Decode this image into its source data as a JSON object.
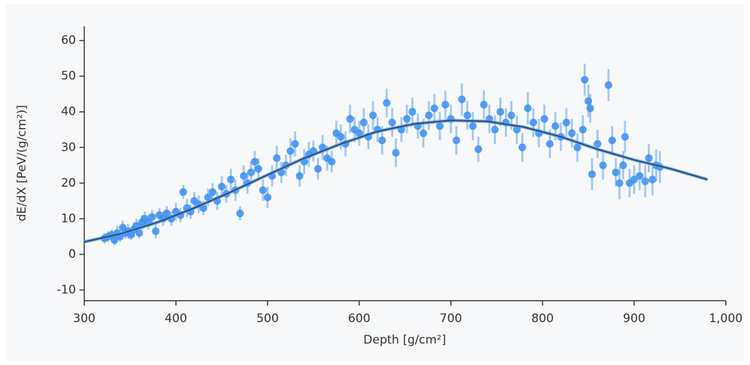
{
  "chart_data": {
    "type": "scatter",
    "xlabel": "Depth [g/cm²]",
    "ylabel": "dE/dX [PeV/(g/cm²)]",
    "xlim": [
      300,
      1000
    ],
    "ylim": [
      -13,
      64
    ],
    "xticks": [
      300,
      400,
      500,
      600,
      700,
      800,
      900,
      {
        "value": 1000,
        "label": "1,000"
      }
    ],
    "yticks": [
      -10,
      0,
      10,
      20,
      30,
      40,
      50,
      60
    ],
    "series": [
      {
        "type": "scatter",
        "color": "#3b8ff0",
        "x": [
          322,
          326,
          330,
          333,
          336,
          339,
          342,
          345,
          348,
          351,
          354,
          357,
          360,
          363,
          366,
          370,
          374,
          378,
          382,
          386,
          390,
          395,
          400,
          405,
          408,
          412,
          416,
          420,
          425,
          430,
          435,
          440,
          445,
          450,
          455,
          460,
          465,
          470,
          474,
          478,
          482,
          486,
          490,
          495,
          500,
          505,
          510,
          515,
          520,
          525,
          530,
          535,
          540,
          545,
          550,
          555,
          560,
          565,
          570,
          575,
          580,
          585,
          590,
          595,
          600,
          605,
          610,
          615,
          620,
          625,
          630,
          636,
          640,
          646,
          652,
          658,
          664,
          670,
          676,
          682,
          688,
          694,
          700,
          706,
          712,
          718,
          724,
          730,
          736,
          742,
          748,
          754,
          760,
          766,
          772,
          778,
          784,
          790,
          796,
          802,
          808,
          814,
          820,
          826,
          832,
          838,
          844,
          846,
          850,
          852,
          854,
          860,
          866,
          872,
          876,
          880,
          884,
          888,
          890,
          895,
          900,
          906,
          912,
          916,
          920,
          924,
          928
        ],
        "values": [
          4.5,
          5,
          5.5,
          4,
          6,
          5,
          7.5,
          6,
          6.5,
          5.5,
          7,
          8,
          6,
          9,
          10,
          9,
          10.5,
          6.5,
          11,
          10,
          11.5,
          10,
          12,
          11,
          17.5,
          13,
          12,
          15,
          14,
          13,
          16,
          17.5,
          15,
          19,
          17,
          21,
          18,
          11.5,
          22,
          20,
          23,
          26,
          24,
          18,
          16,
          22,
          27,
          23,
          25,
          29,
          31,
          22,
          26,
          28,
          29,
          24,
          30,
          27,
          26,
          34,
          33,
          31,
          38,
          35,
          34,
          37,
          33,
          39,
          35,
          32,
          42.5,
          37,
          28.5,
          35,
          38,
          40,
          36,
          34,
          39,
          41,
          36,
          42,
          38,
          32,
          43.5,
          39,
          36,
          29.5,
          42,
          38,
          35,
          40,
          37,
          39,
          35,
          30,
          41,
          37,
          34,
          38,
          31,
          36,
          33,
          37,
          34,
          30,
          35,
          49,
          43,
          41,
          22.5,
          31,
          25,
          47.5,
          32,
          23,
          20,
          25,
          33,
          20,
          21,
          22,
          20.5,
          27,
          21,
          25,
          24.5
        ],
        "errors": [
          1.5,
          1.5,
          1.5,
          1.5,
          2,
          1.5,
          2,
          1.5,
          2,
          1.5,
          2,
          2,
          1.5,
          2,
          2,
          2,
          2,
          2,
          2,
          2,
          2,
          2,
          2.5,
          2,
          2,
          2.5,
          2,
          2.5,
          2.5,
          2,
          2.5,
          2.5,
          2.5,
          3,
          2.5,
          3,
          3,
          2,
          3,
          3,
          3,
          3,
          3,
          3,
          3,
          3,
          3.5,
          3,
          3,
          3.5,
          3.5,
          3,
          3.5,
          3.5,
          3,
          3,
          3.5,
          3.5,
          3,
          3.5,
          3.5,
          3.5,
          4,
          3.5,
          3.5,
          4,
          3.5,
          4,
          3.5,
          4,
          4,
          4,
          4,
          3.5,
          4,
          4,
          3.5,
          4,
          4,
          4,
          4,
          4,
          4,
          4,
          4.5,
          4,
          4,
          3.5,
          4,
          4,
          4,
          4,
          4,
          4,
          4,
          4,
          4.5,
          4,
          4,
          4,
          4,
          4,
          4,
          4,
          4,
          4,
          4,
          4.5,
          4.5,
          4,
          4.5,
          4,
          4,
          4.5,
          4,
          4,
          4.5,
          4,
          4.5,
          4,
          4,
          4,
          4.5,
          4,
          4.5,
          4.5,
          4.5
        ]
      },
      {
        "type": "line",
        "color": "#2b4878",
        "x": [
          300,
          340,
          380,
          420,
          460,
          500,
          540,
          580,
          620,
          660,
          700,
          740,
          780,
          820,
          860,
          900,
          940,
          980
        ],
        "values": [
          3.5,
          5.8,
          9,
          13,
          17.5,
          22.3,
          27,
          31,
          34.5,
          36.6,
          37.6,
          37.3,
          35.7,
          33,
          29.5,
          26.5,
          24,
          21
        ]
      }
    ]
  }
}
